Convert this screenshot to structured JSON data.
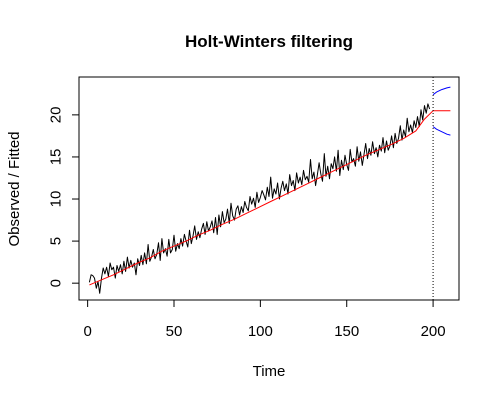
{
  "chart_data": {
    "type": "line",
    "title": "Holt-Winters filtering",
    "xlabel": "Time",
    "ylabel": "Observed / Fitted",
    "xlim": [
      -5,
      215
    ],
    "ylim": [
      -2,
      24.5
    ],
    "x_ticks": [
      0,
      50,
      100,
      150,
      200
    ],
    "y_ticks": [
      0,
      5,
      10,
      15,
      20
    ],
    "grid": false,
    "legend": "none",
    "forecast_start_line": 200,
    "colors": {
      "observed": "#000000",
      "fitted": "#ff0000",
      "interval": "#0000ff",
      "marker_line": "#000000"
    },
    "series": [
      {
        "key": "observed",
        "x_start": 1,
        "values": [
          0.1,
          1.0,
          0.9,
          0.6,
          -0.6,
          0.2,
          -1.2,
          0.6,
          1.8,
          1.1,
          1.9,
          0.8,
          2.4,
          1.6,
          1.9,
          0.6,
          2.1,
          1.4,
          2.2,
          1.1,
          2.6,
          1.4,
          3.1,
          1.8,
          2.7,
          1.9,
          2.4,
          1.0,
          2.9,
          2.1,
          3.3,
          2.2,
          3.6,
          2.3,
          4.6,
          2.6,
          3.1,
          4.0,
          2.9,
          3.4,
          4.8,
          2.7,
          5.3,
          3.6,
          4.1,
          3.2,
          5.2,
          3.6,
          4.0,
          5.7,
          3.8,
          4.7,
          4.1,
          5.3,
          4.4,
          5.8,
          5.0,
          4.3,
          6.3,
          4.7,
          5.6,
          6.8,
          5.2,
          6.1,
          5.4,
          6.4,
          7.1,
          5.8,
          7.3,
          6.2,
          6.7,
          7.4,
          6.0,
          7.8,
          5.8,
          8.1,
          6.7,
          8.5,
          7.2,
          7.6,
          8.8,
          7.1,
          9.5,
          8.0,
          7.5,
          8.8,
          9.2,
          8.1,
          9.1,
          8.4,
          9.7,
          9.0,
          8.6,
          10.3,
          9.4,
          10.1,
          9.0,
          10.8,
          9.6,
          10.2,
          11.0,
          10.5,
          9.9,
          11.4,
          10.3,
          12.6,
          10.1,
          11.2,
          10.6,
          11.9,
          10.0,
          11.3,
          12.1,
          11.0,
          11.8,
          10.6,
          12.9,
          11.6,
          12.2,
          11.0,
          13.1,
          11.9,
          12.6,
          11.7,
          13.4,
          12.3,
          12.7,
          12.0,
          14.7,
          12.4,
          13.2,
          11.6,
          12.9,
          14.3,
          13.0,
          12.1,
          15.4,
          12.7,
          13.9,
          12.4,
          14.2,
          13.6,
          15.0,
          13.3,
          15.8,
          12.8,
          14.6,
          13.5,
          15.2,
          14.1,
          13.4,
          15.9,
          14.4,
          14.8,
          13.9,
          16.2,
          14.5,
          15.6,
          14.0,
          15.3,
          16.6,
          14.8,
          16.0,
          15.2,
          16.8,
          15.4,
          16.1,
          15.0,
          16.4,
          15.7,
          17.3,
          15.5,
          16.9,
          15.8,
          16.3,
          17.5,
          16.1,
          17.8,
          16.6,
          17.2,
          18.7,
          17.0,
          18.2,
          17.4,
          19.6,
          18.0,
          18.8,
          17.9,
          19.3,
          18.5,
          19.8,
          18.6,
          20.6,
          19.4,
          21.1,
          20.2,
          21.3,
          20.7
        ]
      },
      {
        "key": "fitted",
        "x": [
          1,
          8,
          15,
          22,
          29,
          36,
          43,
          50,
          57,
          64,
          71,
          78,
          85,
          92,
          99,
          106,
          113,
          120,
          127,
          134,
          141,
          148,
          155,
          162,
          169,
          176,
          183,
          190,
          195,
          200
        ],
        "values": [
          -0.2,
          0.4,
          1.0,
          1.7,
          2.4,
          3.0,
          3.8,
          4.4,
          5.0,
          5.7,
          6.3,
          7.0,
          7.6,
          8.3,
          9.0,
          9.7,
          10.4,
          11.1,
          11.8,
          12.5,
          13.2,
          13.9,
          14.6,
          15.3,
          15.9,
          16.5,
          17.2,
          18.1,
          19.5,
          20.5
        ]
      },
      {
        "key": "forecast",
        "x": [
          200,
          210
        ],
        "values": [
          20.5,
          20.5
        ]
      },
      {
        "key": "upper",
        "x": [
          200,
          202,
          205,
          208,
          210
        ],
        "values": [
          22.4,
          22.7,
          23.0,
          23.2,
          23.3
        ]
      },
      {
        "key": "lower",
        "x": [
          200,
          202,
          205,
          208,
          210
        ],
        "values": [
          18.6,
          18.3,
          18.0,
          17.7,
          17.6
        ]
      }
    ]
  }
}
